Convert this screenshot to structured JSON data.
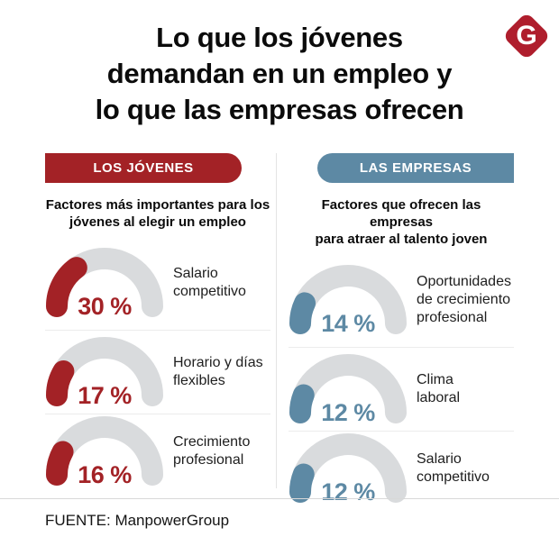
{
  "title": {
    "lines": [
      "Lo que los jóvenes",
      "demandan en un empleo y",
      "lo que las empresas ofrecen"
    ]
  },
  "logo": {
    "letter": "G",
    "background": "#AF1E2D"
  },
  "theme": {
    "track_color": "#D9DBDD"
  },
  "columns": [
    {
      "header": "LOS JÓVENES",
      "accent": "#A32226",
      "subtitle": "Factores más importantes para los\njóvenes al elegir un empleo",
      "rows": [
        {
          "percent": 30,
          "value_label": "30 %",
          "label": "Salario\ncompetitivo"
        },
        {
          "percent": 17,
          "value_label": "17 %",
          "label": "Horario y días\nflexibles"
        },
        {
          "percent": 16,
          "value_label": "16 %",
          "label": "Crecimiento\nprofesional"
        }
      ]
    },
    {
      "header": "LAS EMPRESAS",
      "accent": "#5D89A4",
      "subtitle": "Factores que ofrecen las empresas\npara atraer al talento joven",
      "rows": [
        {
          "percent": 14,
          "value_label": "14 %",
          "label": "Oportunidades\nde crecimiento\nprofesional"
        },
        {
          "percent": 12,
          "value_label": "12 %",
          "label": "Clima\nlaboral"
        },
        {
          "percent": 12,
          "value_label": "12 %",
          "label": "Salario\ncompetitivo"
        }
      ]
    }
  ],
  "footer": {
    "source": "FUENTE: ManpowerGroup"
  },
  "chart_data": [
    {
      "type": "gauge",
      "group": "LOS JÓVENES",
      "title": "Factores más importantes para los jóvenes al elegir un empleo",
      "categories": [
        "Salario competitivo",
        "Horario y días flexibles",
        "Crecimiento profesional"
      ],
      "values": [
        30,
        17,
        16
      ],
      "unit": "%",
      "range": [
        0,
        100
      ],
      "color": "#A32226"
    },
    {
      "type": "gauge",
      "group": "LAS EMPRESAS",
      "title": "Factores que ofrecen las empresas para atraer al talento joven",
      "categories": [
        "Oportunidades de crecimiento profesional",
        "Clima laboral",
        "Salario competitivo"
      ],
      "values": [
        14,
        12,
        12
      ],
      "unit": "%",
      "range": [
        0,
        100
      ],
      "color": "#5D89A4"
    }
  ]
}
